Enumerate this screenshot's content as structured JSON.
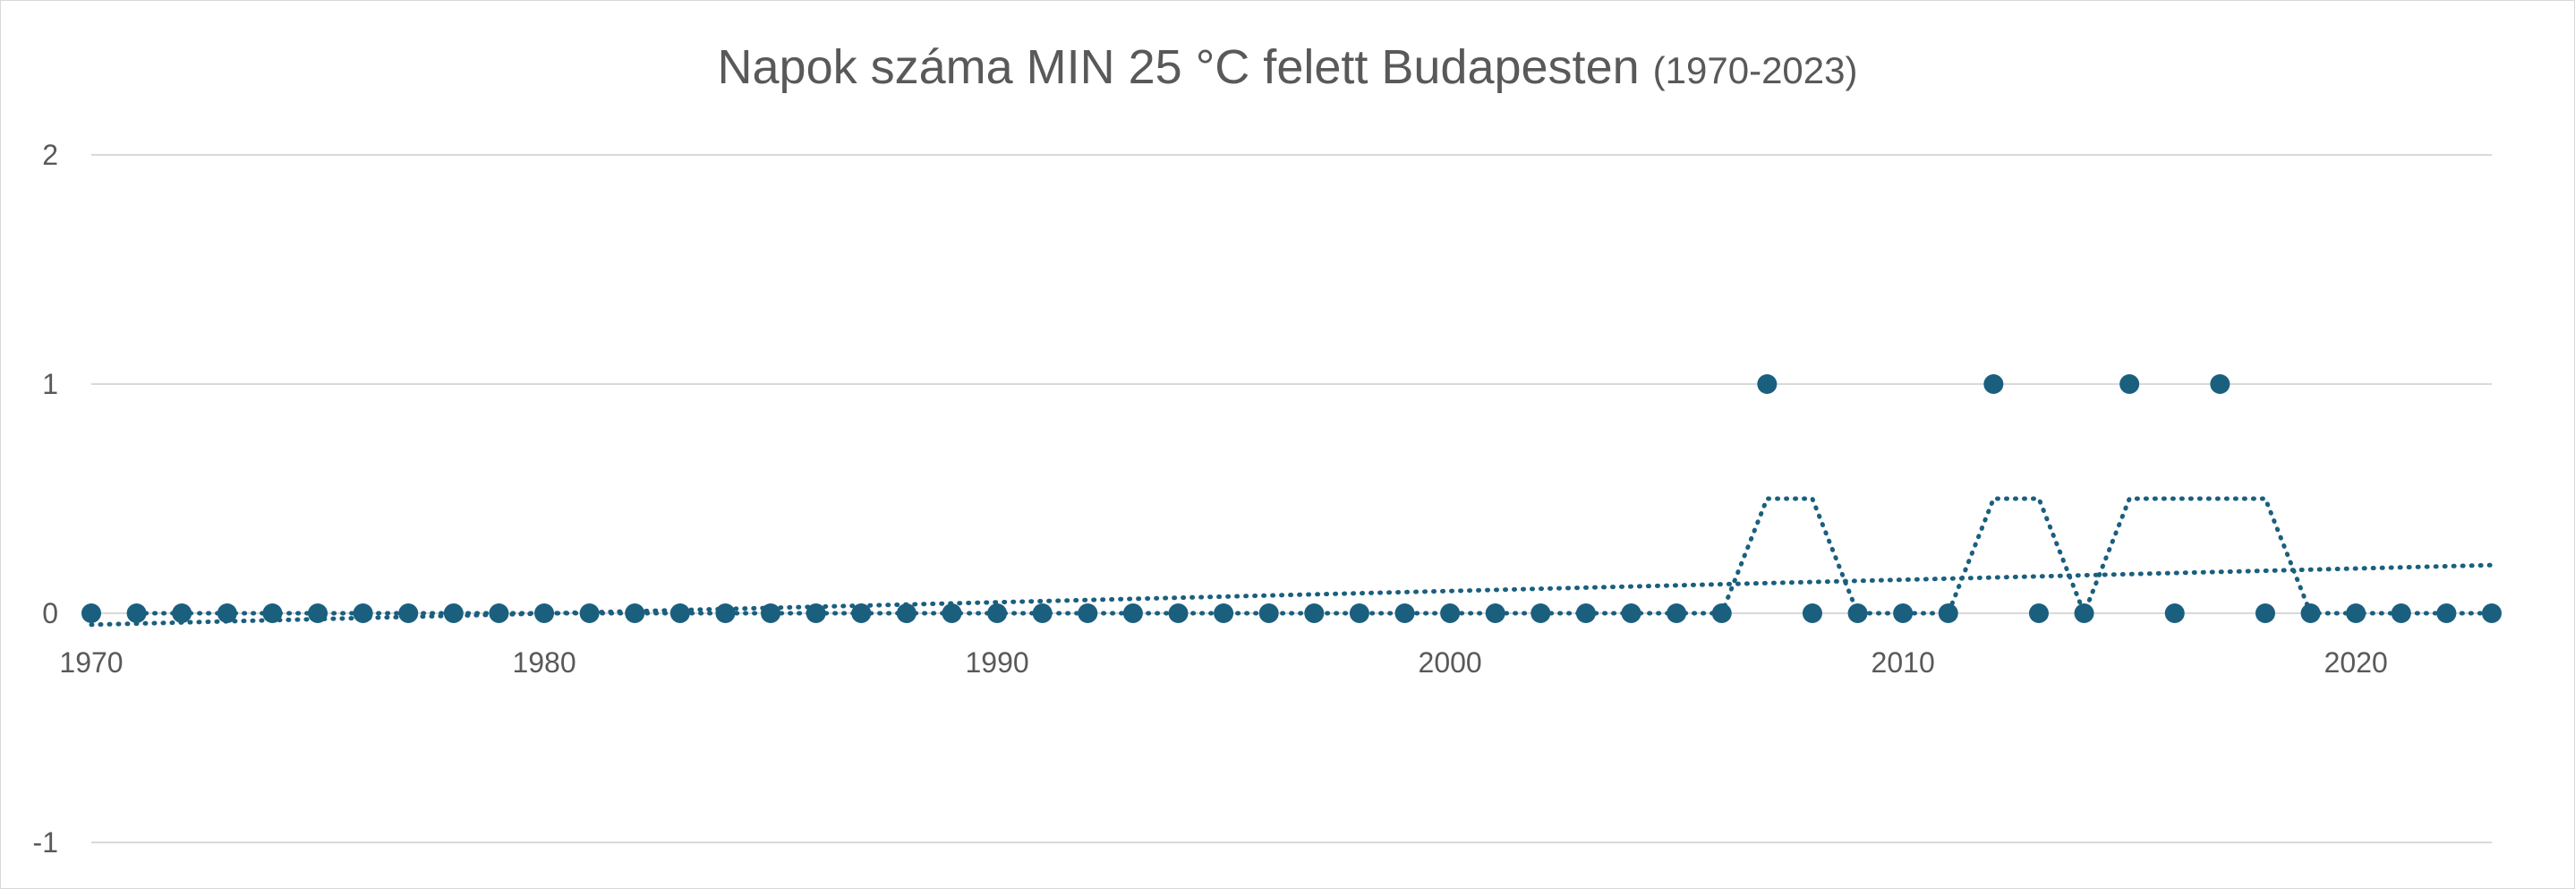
{
  "chart_data": {
    "type": "scatter",
    "title": "Napok száma MIN 25 °C felett Budapesten",
    "title_suffix": "(1970-2023)",
    "xlabel": "",
    "ylabel": "",
    "xlim": [
      1970,
      2023
    ],
    "ylim": [
      -1,
      2
    ],
    "x_ticks": [
      "1970",
      "1980",
      "1990",
      "2000",
      "2010",
      "2020"
    ],
    "y_ticks": [
      "2",
      "1",
      "0",
      "-1"
    ],
    "grid": true,
    "legend": "none",
    "series": [
      {
        "x": [
          1970,
          1971,
          1972,
          1973,
          1974,
          1975,
          1976,
          1977,
          1978,
          1979,
          1980,
          1981,
          1982,
          1983,
          1984,
          1985,
          1986,
          1987,
          1988,
          1989,
          1990,
          1991,
          1992,
          1993,
          1994,
          1995,
          1996,
          1997,
          1998,
          1999,
          2000,
          2001,
          2002,
          2003,
          2004,
          2005,
          2006,
          2007,
          2008,
          2009,
          2010,
          2011,
          2012,
          2013,
          2014,
          2015,
          2016,
          2017,
          2018,
          2019,
          2020,
          2021,
          2022,
          2023
        ],
        "values": [
          0,
          0,
          0,
          0,
          0,
          0,
          0,
          0,
          0,
          0,
          0,
          0,
          0,
          0,
          0,
          0,
          0,
          0,
          0,
          0,
          0,
          0,
          0,
          0,
          0,
          0,
          0,
          0,
          0,
          0,
          0,
          0,
          0,
          0,
          0,
          0,
          0,
          1,
          0,
          0,
          0,
          0,
          1,
          0,
          0,
          1,
          0,
          1,
          0,
          0,
          0,
          0,
          0,
          0
        ]
      }
    ],
    "trendlines": [
      {
        "type": "moving_average",
        "period": 2
      },
      {
        "type": "linear",
        "from": [
          1970,
          -0.05
        ],
        "to": [
          2023,
          0.21
        ]
      }
    ],
    "colors": {
      "series": "#1b5f7f",
      "grid": "#d9d9d9",
      "text": "#595959",
      "title": "#595959"
    }
  }
}
